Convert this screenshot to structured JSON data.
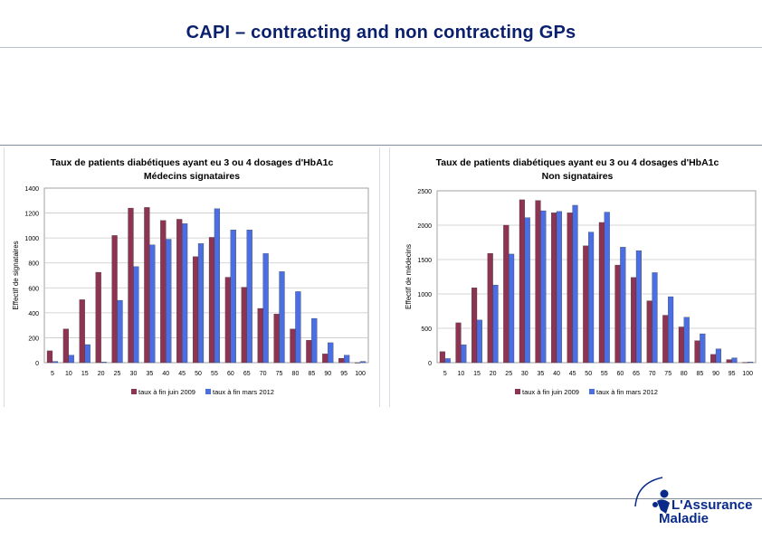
{
  "slide": {
    "title": "CAPI – contracting and non contracting GPs"
  },
  "colors": {
    "series_2009": "#8e3453",
    "series_2012": "#4b6fe2",
    "title_color": "#0a1f6e",
    "logo_color": "#0a2a8a"
  },
  "logo": {
    "line1": "L'Assurance",
    "line2": "Maladie",
    "icon": "assurance-maladie-logo"
  },
  "chart_data": [
    {
      "type": "bar",
      "title": "Taux de patients diabétiques ayant eu 3 ou 4 dosages d'HbA1c",
      "subtitle": "Médecins signataires",
      "xlabel": "",
      "ylabel": "Effectif de signataires",
      "ylim": [
        0,
        1400
      ],
      "yticks": [
        0,
        200,
        400,
        600,
        800,
        1000,
        1200,
        1400
      ],
      "grid": true,
      "legend": "bottom",
      "categories": [
        "5",
        "10",
        "15",
        "20",
        "25",
        "30",
        "35",
        "40",
        "45",
        "50",
        "55",
        "60",
        "65",
        "70",
        "75",
        "80",
        "85",
        "90",
        "95",
        "100"
      ],
      "series": [
        {
          "name": "taux à fin juin 2009",
          "values": [
            95,
            270,
            505,
            725,
            1020,
            1240,
            1245,
            1140,
            1150,
            850,
            1005,
            685,
            605,
            435,
            390,
            270,
            180,
            70,
            35,
            0
          ]
        },
        {
          "name": "taux à fin mars 2012",
          "values": [
            10,
            60,
            145,
            5,
            500,
            770,
            945,
            990,
            1115,
            955,
            1235,
            1065,
            1065,
            875,
            730,
            570,
            355,
            160,
            60,
            10
          ]
        }
      ]
    },
    {
      "type": "bar",
      "title": "Taux de patients diabétiques ayant eu 3 ou 4 dosages d'HbA1c",
      "subtitle": "Non signataires",
      "xlabel": "",
      "ylabel": "Effectif de médecins",
      "ylim": [
        0,
        2500
      ],
      "yticks": [
        0,
        500,
        1000,
        1500,
        2000,
        2500
      ],
      "grid": true,
      "legend": "bottom",
      "categories": [
        "5",
        "10",
        "15",
        "20",
        "25",
        "30",
        "35",
        "40",
        "45",
        "50",
        "55",
        "60",
        "65",
        "70",
        "75",
        "80",
        "85",
        "90",
        "95",
        "100"
      ],
      "series": [
        {
          "name": "taux à fin juin 2009",
          "values": [
            160,
            580,
            1090,
            1590,
            2000,
            2370,
            2360,
            2180,
            2180,
            1700,
            2040,
            1420,
            1240,
            900,
            690,
            520,
            320,
            120,
            45,
            5
          ]
        },
        {
          "name": "taux à fin mars 2012",
          "values": [
            60,
            260,
            620,
            1130,
            1580,
            2110,
            2210,
            2200,
            2290,
            1900,
            2190,
            1680,
            1630,
            1310,
            960,
            660,
            420,
            200,
            70,
            10
          ]
        }
      ]
    }
  ]
}
